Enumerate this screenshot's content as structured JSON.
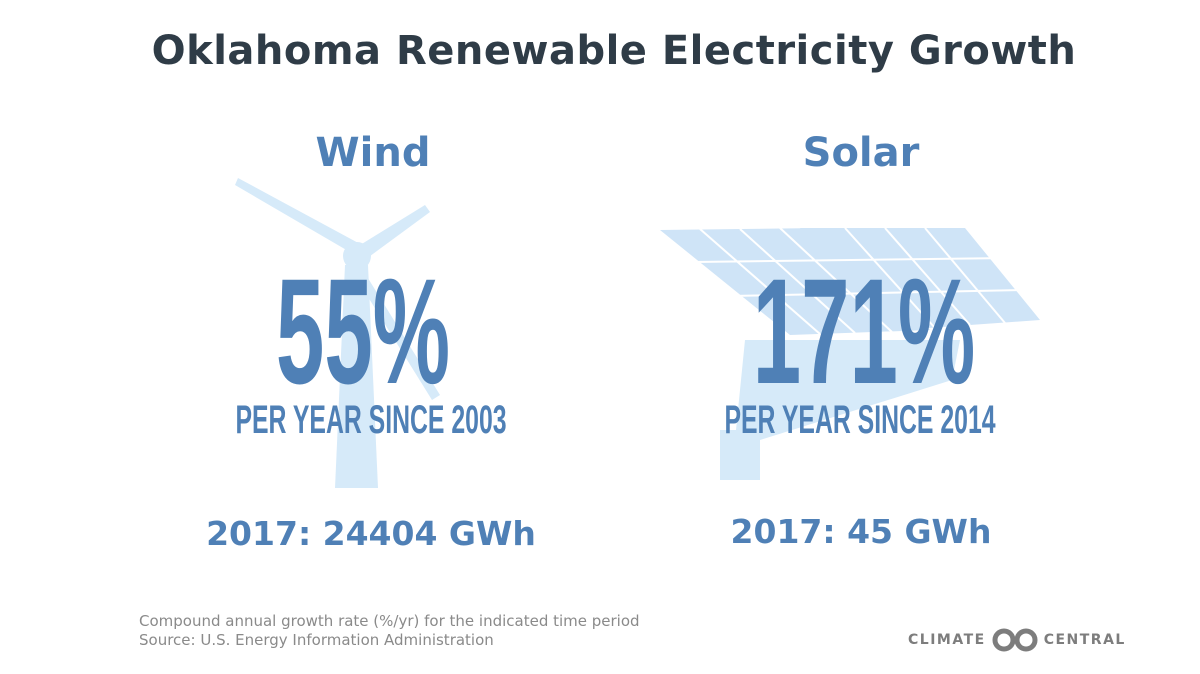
{
  "title": "Oklahoma Renewable Electricity Growth",
  "wind": {
    "heading": "Wind",
    "rate": "55%",
    "period": "PER YEAR SINCE 2003",
    "total": "2017: 24404 GWh",
    "icon": "wind-turbine-icon"
  },
  "solar": {
    "heading": "Solar",
    "rate": "171%",
    "period": "PER YEAR SINCE 2014",
    "total": "2017: 45 GWh",
    "icon": "solar-panel-icon"
  },
  "footer": {
    "note": "Compound annual growth rate (%/yr) for the indicated time period",
    "source": "Source: U.S. Energy  Information Administration"
  },
  "logo": {
    "left": "CLIMATE",
    "right": "CENTRAL"
  },
  "colors": {
    "title": "#2f3c47",
    "accent": "#4f80b6",
    "illustration": "#cfe5f7",
    "footer": "#8a8a8a"
  }
}
